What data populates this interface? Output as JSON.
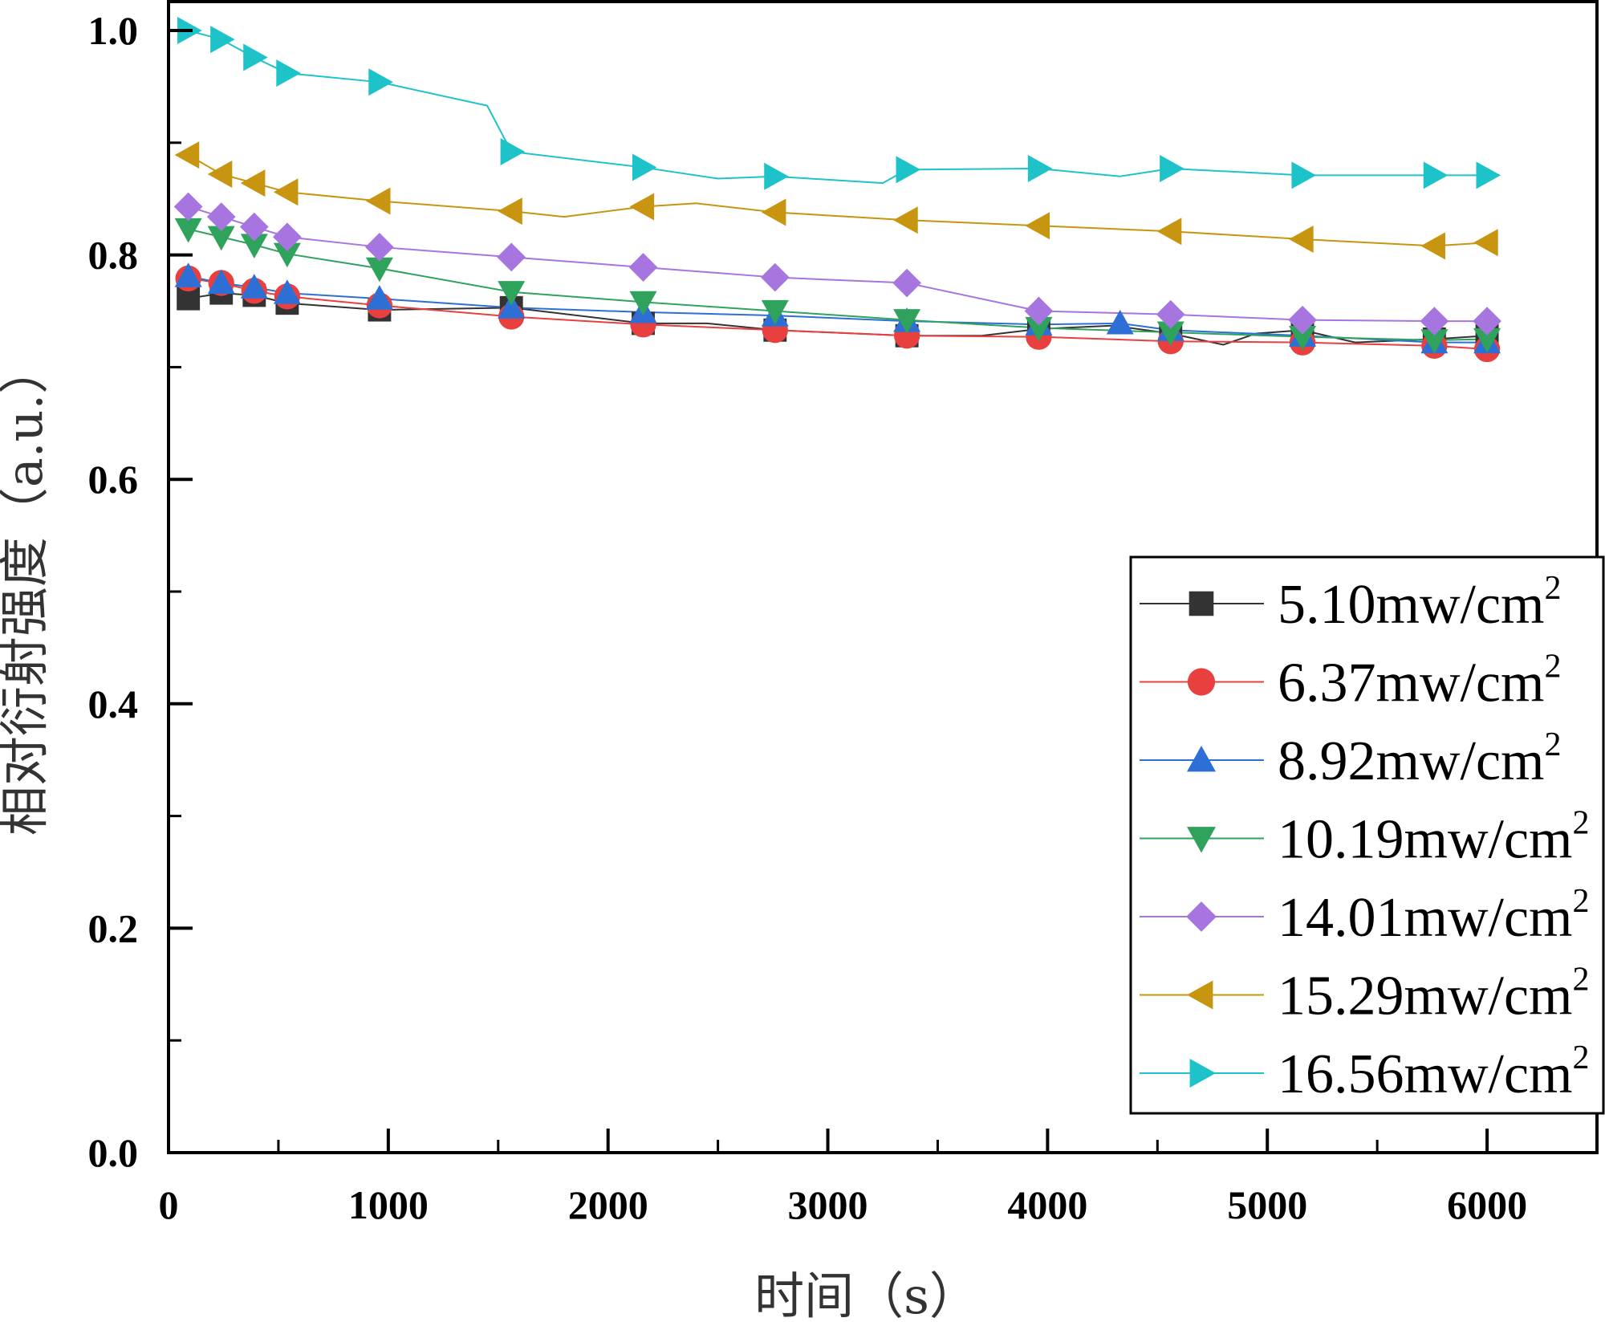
{
  "chart_data": {
    "type": "line",
    "title": "",
    "xlabel": "时间（s）",
    "ylabel": "相对衍射强度（a.u.）",
    "xlim": [
      0,
      6500
    ],
    "ylim": [
      0,
      1.0
    ],
    "xticks": [
      0,
      1000,
      2000,
      3000,
      4000,
      5000,
      6000
    ],
    "xtick_labels": [
      "0",
      "1000",
      "2000",
      "3000",
      "4000",
      "5000",
      "6000"
    ],
    "yticks": [
      0.0,
      0.2,
      0.4,
      0.6,
      0.8,
      1.0
    ],
    "ytick_labels": [
      "0.0",
      "0.2",
      "0.4",
      "0.6",
      "0.8",
      "1.0"
    ],
    "legend_position": "right",
    "series": [
      {
        "name": "5.10mw/cm",
        "sup": "2",
        "color": "#333333",
        "marker": "square",
        "line_x": [
          90,
          240,
          390,
          540,
          960,
          1560,
          2160,
          2450,
          2760,
          3360,
          3700,
          3960,
          4300,
          4560,
          4800,
          4950,
          5160,
          5400,
          5760,
          6000
        ],
        "line_y": [
          0.761,
          0.766,
          0.764,
          0.757,
          0.751,
          0.753,
          0.739,
          0.739,
          0.733,
          0.728,
          0.728,
          0.734,
          0.737,
          0.73,
          0.72,
          0.73,
          0.733,
          0.722,
          0.725,
          0.728
        ],
        "marker_x": [
          90,
          240,
          390,
          540,
          960,
          1560,
          2160,
          2760,
          3360,
          3960,
          4560,
          5160,
          5760,
          6000
        ],
        "marker_y": [
          0.761,
          0.766,
          0.764,
          0.757,
          0.751,
          0.753,
          0.739,
          0.733,
          0.728,
          0.734,
          0.73,
          0.733,
          0.725,
          0.728
        ]
      },
      {
        "name": "6.37mw/cm",
        "sup": "2",
        "color": "#e8403e",
        "marker": "circle",
        "line_x": [
          90,
          240,
          390,
          540,
          960,
          1560,
          2160,
          2760,
          3360,
          3960,
          4560,
          5160,
          5760,
          6000
        ],
        "line_y": [
          0.779,
          0.775,
          0.768,
          0.763,
          0.755,
          0.745,
          0.738,
          0.733,
          0.728,
          0.727,
          0.723,
          0.722,
          0.719,
          0.716
        ],
        "marker_x": [
          90,
          240,
          390,
          540,
          960,
          1560,
          2160,
          2760,
          3360,
          3960,
          4560,
          5160,
          5760,
          6000
        ],
        "marker_y": [
          0.779,
          0.775,
          0.768,
          0.763,
          0.755,
          0.745,
          0.738,
          0.733,
          0.728,
          0.727,
          0.723,
          0.722,
          0.719,
          0.716
        ]
      },
      {
        "name": "8.92mw/cm",
        "sup": "2",
        "color": "#2e6fd6",
        "marker": "triangle-up",
        "line_x": [
          90,
          240,
          390,
          540,
          960,
          1560,
          2160,
          2760,
          3360,
          3960,
          4330,
          4560,
          5160,
          5760,
          6000
        ],
        "line_y": [
          0.781,
          0.775,
          0.771,
          0.766,
          0.761,
          0.753,
          0.749,
          0.746,
          0.741,
          0.738,
          0.739,
          0.733,
          0.728,
          0.722,
          0.722
        ],
        "marker_x": [
          90,
          240,
          390,
          540,
          960,
          1560,
          2160,
          2760,
          3360,
          3960,
          4330,
          4560,
          5160,
          5760,
          6000
        ],
        "marker_y": [
          0.781,
          0.775,
          0.771,
          0.766,
          0.761,
          0.753,
          0.749,
          0.746,
          0.741,
          0.738,
          0.739,
          0.733,
          0.728,
          0.722,
          0.722
        ]
      },
      {
        "name": "10.19mw/cm",
        "sup": "2",
        "color": "#2fa35c",
        "marker": "triangle-down",
        "line_x": [
          90,
          240,
          390,
          540,
          960,
          1560,
          2160,
          2760,
          3360,
          3960,
          4560,
          5160,
          5760,
          6000
        ],
        "line_y": [
          0.823,
          0.816,
          0.809,
          0.801,
          0.788,
          0.767,
          0.758,
          0.75,
          0.742,
          0.735,
          0.731,
          0.727,
          0.724,
          0.725
        ],
        "marker_x": [
          90,
          240,
          390,
          540,
          960,
          1560,
          2160,
          2760,
          3360,
          3960,
          4560,
          5160,
          5760,
          6000
        ],
        "marker_y": [
          0.823,
          0.816,
          0.809,
          0.801,
          0.788,
          0.767,
          0.758,
          0.75,
          0.742,
          0.735,
          0.731,
          0.727,
          0.724,
          0.725
        ]
      },
      {
        "name": "14.01mw/cm",
        "sup": "2",
        "color": "#a675e0",
        "marker": "diamond",
        "line_x": [
          90,
          240,
          390,
          540,
          960,
          1560,
          2160,
          2760,
          3360,
          3960,
          4560,
          5160,
          5760,
          6000
        ],
        "line_y": [
          0.843,
          0.834,
          0.825,
          0.816,
          0.807,
          0.798,
          0.789,
          0.78,
          0.775,
          0.75,
          0.747,
          0.742,
          0.741,
          0.741
        ],
        "marker_x": [
          90,
          240,
          390,
          540,
          960,
          1560,
          2160,
          2760,
          3360,
          3960,
          4560,
          5160,
          5760,
          6000
        ],
        "marker_y": [
          0.843,
          0.834,
          0.825,
          0.816,
          0.807,
          0.798,
          0.789,
          0.78,
          0.775,
          0.75,
          0.747,
          0.742,
          0.741,
          0.741
        ]
      },
      {
        "name": "15.29mw/cm",
        "sup": "2",
        "color": "#c7950f",
        "marker": "triangle-left",
        "line_x": [
          90,
          240,
          390,
          540,
          960,
          1560,
          1800,
          2160,
          2400,
          2760,
          3360,
          3960,
          4560,
          5160,
          5760,
          6000
        ],
        "line_y": [
          0.889,
          0.872,
          0.864,
          0.856,
          0.848,
          0.839,
          0.834,
          0.843,
          0.846,
          0.838,
          0.831,
          0.826,
          0.821,
          0.814,
          0.808,
          0.811
        ],
        "marker_x": [
          90,
          240,
          390,
          540,
          960,
          1560,
          2160,
          2760,
          3360,
          3960,
          4560,
          5160,
          5760,
          6000
        ],
        "marker_y": [
          0.889,
          0.872,
          0.864,
          0.856,
          0.848,
          0.839,
          0.843,
          0.838,
          0.831,
          0.826,
          0.821,
          0.814,
          0.808,
          0.811
        ]
      },
      {
        "name": "16.56mw/cm",
        "sup": "2",
        "color": "#1ec3c9",
        "marker": "triangle-right",
        "line_x": [
          90,
          240,
          390,
          540,
          960,
          1450,
          1560,
          2160,
          2500,
          2760,
          3250,
          3360,
          3960,
          4330,
          4560,
          5160,
          5760,
          6000
        ],
        "line_y": [
          1.0,
          0.992,
          0.976,
          0.962,
          0.954,
          0.933,
          0.892,
          0.878,
          0.868,
          0.87,
          0.864,
          0.876,
          0.877,
          0.87,
          0.877,
          0.871,
          0.871,
          0.871
        ],
        "marker_x": [
          90,
          240,
          390,
          540,
          960,
          1560,
          2160,
          2760,
          3360,
          3960,
          4560,
          5160,
          5760,
          6000
        ],
        "marker_y": [
          1.0,
          0.992,
          0.976,
          0.962,
          0.954,
          0.892,
          0.878,
          0.87,
          0.876,
          0.877,
          0.877,
          0.871,
          0.871,
          0.871
        ]
      }
    ]
  }
}
